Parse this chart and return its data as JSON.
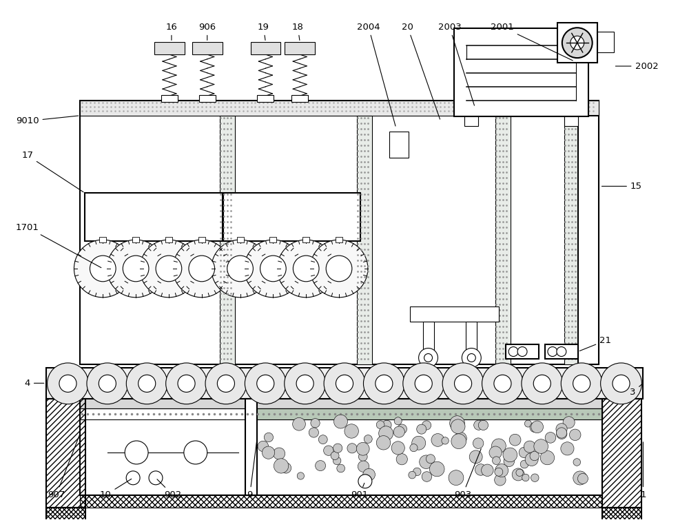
{
  "bg_color": "#ffffff",
  "lc": "#000000",
  "figsize": [
    10.0,
    7.55
  ],
  "dpi": 100
}
